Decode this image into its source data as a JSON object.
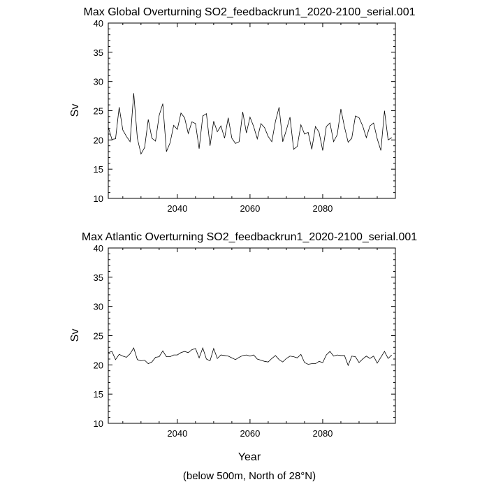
{
  "chart_data": [
    {
      "type": "line",
      "title": "Max Global Overturning SO2_feedbackrun1_2020-2100_serial.001",
      "xlabel": "",
      "ylabel": "Sv",
      "xlim": [
        2021,
        2100
      ],
      "ylim": [
        10,
        40
      ],
      "xticks": [
        2040,
        2060,
        2080
      ],
      "yticks": [
        10,
        15,
        20,
        25,
        30,
        35,
        40
      ],
      "grid": false,
      "series": [
        {
          "x": [
            2021,
            2022,
            2023,
            2024,
            2025,
            2026,
            2027,
            2028,
            2029,
            2030,
            2031,
            2032,
            2033,
            2034,
            2035,
            2036,
            2037,
            2038,
            2039,
            2040,
            2041,
            2042,
            2043,
            2044,
            2045,
            2046,
            2047,
            2048,
            2049,
            2050,
            2051,
            2052,
            2053,
            2054,
            2055,
            2056,
            2057,
            2058,
            2059,
            2060,
            2061,
            2062,
            2063,
            2064,
            2065,
            2066,
            2067,
            2068,
            2069,
            2070,
            2071,
            2072,
            2073,
            2074,
            2075,
            2076,
            2077,
            2078,
            2079,
            2080,
            2081,
            2082,
            2083,
            2084,
            2085,
            2086,
            2087,
            2088,
            2089,
            2090,
            2091,
            2092,
            2093,
            2094,
            2095,
            2096,
            2097,
            2098,
            2099
          ],
          "values": [
            22.2,
            20.1,
            20.2,
            25.6,
            21.7,
            20.6,
            19.7,
            28.0,
            20.3,
            17.6,
            18.7,
            23.5,
            20.3,
            19.8,
            24.2,
            26.2,
            18.0,
            19.5,
            22.5,
            21.8,
            24.6,
            23.8,
            21.1,
            23.1,
            22.8,
            18.5,
            24.1,
            24.5,
            19.0,
            23.2,
            21.4,
            22.4,
            20.3,
            23.8,
            20.3,
            19.4,
            19.7,
            24.8,
            21.2,
            23.9,
            22.3,
            20.2,
            22.8,
            22.1,
            20.6,
            19.7,
            23.2,
            25.6,
            19.7,
            21.7,
            23.9,
            18.4,
            18.9,
            22.6,
            21.0,
            21.3,
            18.4,
            22.3,
            21.3,
            18.2,
            22.3,
            22.9,
            19.7,
            20.9,
            25.3,
            22.2,
            19.6,
            20.3,
            24.1,
            23.8,
            22.4,
            20.4,
            22.4,
            22.9,
            20.2,
            18.2,
            25.0,
            20.0,
            20.4
          ]
        }
      ]
    },
    {
      "type": "line",
      "title": "Max Atlantic Overturning SO2_feedbackrun1_2020-2100_serial.001",
      "xlabel": "Year",
      "ylabel": "Sv",
      "xlim": [
        2021,
        2100
      ],
      "ylim": [
        10,
        40
      ],
      "xticks": [
        2040,
        2060,
        2080
      ],
      "yticks": [
        10,
        15,
        20,
        25,
        30,
        35,
        40
      ],
      "grid": false,
      "series": [
        {
          "x": [
            2021,
            2022,
            2023,
            2024,
            2025,
            2026,
            2027,
            2028,
            2029,
            2030,
            2031,
            2032,
            2033,
            2034,
            2035,
            2036,
            2037,
            2038,
            2039,
            2040,
            2041,
            2042,
            2043,
            2044,
            2045,
            2046,
            2047,
            2048,
            2049,
            2050,
            2051,
            2052,
            2053,
            2054,
            2055,
            2056,
            2057,
            2058,
            2059,
            2060,
            2061,
            2062,
            2063,
            2064,
            2065,
            2066,
            2067,
            2068,
            2069,
            2070,
            2071,
            2072,
            2073,
            2074,
            2075,
            2076,
            2077,
            2078,
            2079,
            2080,
            2081,
            2082,
            2083,
            2084,
            2085,
            2086,
            2087,
            2088,
            2089,
            2090,
            2091,
            2092,
            2093,
            2094,
            2095,
            2096,
            2097,
            2098,
            2099
          ],
          "values": [
            22.1,
            22.3,
            20.9,
            21.8,
            21.5,
            21.3,
            21.9,
            22.9,
            20.9,
            20.7,
            20.8,
            20.2,
            20.5,
            21.3,
            21.4,
            22.4,
            21.4,
            21.4,
            21.7,
            21.7,
            22.1,
            22.3,
            22.1,
            22.6,
            22.8,
            21.2,
            22.9,
            21.0,
            20.7,
            22.8,
            21.1,
            21.7,
            21.6,
            21.5,
            21.2,
            20.9,
            21.3,
            21.6,
            21.7,
            21.5,
            21.7,
            21.0,
            20.8,
            20.6,
            20.5,
            21.1,
            21.6,
            20.9,
            20.5,
            21.1,
            21.5,
            21.4,
            21.2,
            21.8,
            20.4,
            20.1,
            20.2,
            20.2,
            20.6,
            20.4,
            21.7,
            22.3,
            21.5,
            21.7,
            21.6,
            21.6,
            19.9,
            21.5,
            21.4,
            20.4,
            21.0,
            21.5,
            21.1,
            21.5,
            20.3,
            21.3,
            22.3,
            21.1,
            21.7
          ]
        }
      ]
    }
  ],
  "footer_note": "(below 500m, North of 28°N)"
}
